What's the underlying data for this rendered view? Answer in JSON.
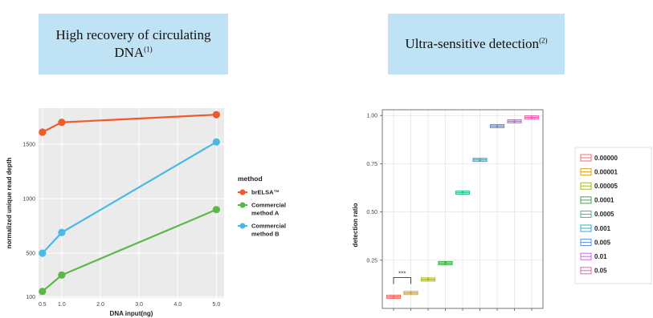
{
  "left_panel": {
    "title_line1": "High recovery of circulating",
    "title_line2": "DNA",
    "title_ref": "(1)"
  },
  "right_panel": {
    "title": "Ultra-sensitive detection",
    "title_ref": "(2)"
  },
  "colors": {
    "banner": "#bfe3f5",
    "brELSA": "#f05a2a",
    "commercialA": "#5cb846",
    "commercialB": "#4ab8e8"
  },
  "chart_data": [
    {
      "type": "line",
      "xlabel": "DNA input(ng)",
      "ylabel": "normalized unique read depth",
      "xlim": [
        0.4,
        5.2
      ],
      "ylim": [
        90,
        1830
      ],
      "x_ticks": [
        0.5,
        1.0,
        2.0,
        3.0,
        4.0,
        5.0
      ],
      "x_tick_labels": [
        "0.5",
        "1.0",
        "2.0",
        "3.0",
        "4.0",
        "5.0"
      ],
      "y_ticks": [
        100,
        500,
        1000,
        1500
      ],
      "y_tick_labels": [
        "100",
        "500",
        "1000",
        "1500"
      ],
      "grid": true,
      "legend_title": "method",
      "legend_position": "right",
      "series": [
        {
          "name": "brELSA™",
          "legend_lines": [
            "brELSA™"
          ],
          "color": "#f05a2a",
          "x": [
            0.5,
            1.0,
            5.0
          ],
          "y": [
            1610,
            1700,
            1770
          ]
        },
        {
          "name": "Commercial method A",
          "legend_lines": [
            "Commercial",
            "method A"
          ],
          "color": "#5cb846",
          "x": [
            0.5,
            1.0,
            5.0
          ],
          "y": [
            150,
            300,
            900
          ]
        },
        {
          "name": "Commercial method B",
          "legend_lines": [
            "Commercial",
            "method B"
          ],
          "color": "#4ab8e8",
          "x": [
            0.5,
            1.0,
            5.0
          ],
          "y": [
            500,
            690,
            1520
          ]
        }
      ]
    },
    {
      "type": "box",
      "xlabel": "",
      "ylabel": "detection ratio",
      "ylim": [
        0.0,
        1.03
      ],
      "y_ticks": [
        0.25,
        0.5,
        0.75,
        1.0
      ],
      "y_tick_labels": [
        "0.25",
        "0.50",
        "0.75",
        "1.00"
      ],
      "grid": true,
      "legend_position": "right",
      "significance_label": "***",
      "categories": [
        "0.00000",
        "0.00001",
        "0.00005",
        "0.0001",
        "0.0005",
        "0.001",
        "0.005",
        "0.01",
        "0.05"
      ],
      "values": [
        0.06,
        0.08,
        0.15,
        0.235,
        0.6,
        0.77,
        0.945,
        0.97,
        0.99
      ],
      "colors": [
        "#f26d6d",
        "#d8a21c",
        "#a6b61e",
        "#3aaa4a",
        "#2fbf8f",
        "#2aaed1",
        "#5e8de8",
        "#c26be0",
        "#ef5fad"
      ]
    }
  ]
}
